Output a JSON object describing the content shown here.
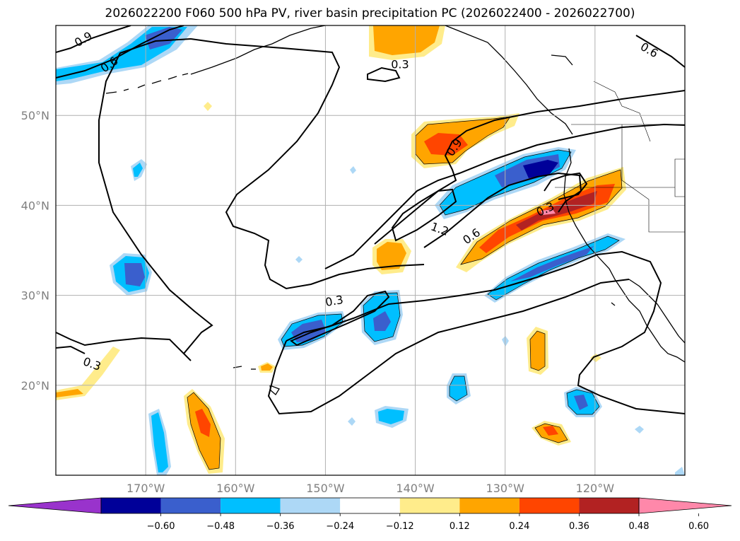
{
  "title": "2026022200 F060 500 hPa PV, river basin precipitation PC (2026022400 - 2026022700)",
  "map": {
    "lon_range": [
      -180,
      -110
    ],
    "lat_range": [
      10,
      60
    ],
    "lon_ticks": [
      {
        "lon": -170,
        "label": "170°W"
      },
      {
        "lon": -160,
        "label": "160°W"
      },
      {
        "lon": -150,
        "label": "150°W"
      },
      {
        "lon": -140,
        "label": "140°W"
      },
      {
        "lon": -130,
        "label": "130°W"
      },
      {
        "lon": -120,
        "label": "120°W"
      }
    ],
    "lat_ticks": [
      {
        "lat": 50,
        "label": "50°N"
      },
      {
        "lat": 40,
        "label": "40°N"
      },
      {
        "lat": 30,
        "label": "30°N"
      },
      {
        "lat": 20,
        "label": "20°N"
      }
    ],
    "contour_labels": [
      {
        "text": "0.9",
        "lon": -176.9,
        "lat": 58.4,
        "angle": -30
      },
      {
        "text": "0.6",
        "lon": -174.0,
        "lat": 55.6,
        "angle": -35
      },
      {
        "text": "0.3",
        "lon": -141.7,
        "lat": 55.6,
        "angle": 0
      },
      {
        "text": "0.6",
        "lon": -114.0,
        "lat": 57.2,
        "angle": 30
      },
      {
        "text": "0.9",
        "lon": -135.6,
        "lat": 46.4,
        "angle": -55
      },
      {
        "text": "0.3",
        "lon": -125.5,
        "lat": 39.5,
        "angle": -25
      },
      {
        "text": "1.2",
        "lon": -137.3,
        "lat": 37.3,
        "angle": 20
      },
      {
        "text": "0.6",
        "lon": -133.7,
        "lat": 36.5,
        "angle": -35
      },
      {
        "text": "0.3",
        "lon": -149.0,
        "lat": 29.3,
        "angle": -10
      },
      {
        "text": "0.3",
        "lon": -176.0,
        "lat": 22.3,
        "angle": 20
      }
    ]
  },
  "colorbar": {
    "levels": [
      -0.72,
      -0.6,
      -0.48,
      -0.36,
      -0.24,
      -0.12,
      0.12,
      0.24,
      0.36,
      0.48,
      0.6,
      0.72
    ],
    "ticks": [
      "−0.60",
      "−0.48",
      "−0.36",
      "−0.24",
      "−0.12",
      "0.12",
      "0.24",
      "0.36",
      "0.48",
      "0.60"
    ],
    "colors": [
      "#9933cc",
      "#000099",
      "#3a5fcd",
      "#00bfff",
      "#add8f6",
      "#ffffff",
      "#ffec8b",
      "#ffa500",
      "#ff4500",
      "#b22222",
      "#ff88aa"
    ]
  }
}
